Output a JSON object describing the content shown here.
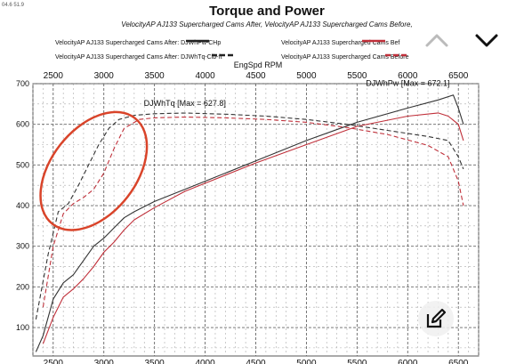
{
  "corner_label": "04.6 51.9",
  "chart_data": {
    "type": "line",
    "title": "Torque and Power",
    "subtitle": "VelocityAP AJ133 Supercharged Cams After, VelocityAP AJ133 Supercharged Cams Before,",
    "xlabel": "EngSpd RPM",
    "ylabel": "",
    "xlim": [
      2300,
      6700
    ],
    "ylim": [
      30,
      700
    ],
    "x_ticks": [
      2500,
      3000,
      3500,
      4000,
      4500,
      5000,
      5500,
      6000,
      6500
    ],
    "x_tick_labels": [
      "2500",
      "3000",
      "3500",
      "4000",
      "4500",
      "5000",
      "5500",
      "6000",
      "6500"
    ],
    "y_ticks": [
      100,
      200,
      300,
      400,
      500,
      600,
      700
    ],
    "y_tick_labels": [
      "100",
      "200",
      "300",
      "400",
      "500",
      "600",
      "700"
    ],
    "grid": true,
    "legend_placement": "top",
    "legend": [
      {
        "label": "VelocityAP AJ133 Supercharged Cams After: DJWhPw-CHp",
        "color": "#222222",
        "dash": "solid"
      },
      {
        "label": "VelocityAP AJ133 Supercharged Cams Bef",
        "color": "#c0303a",
        "dash": "solid"
      },
      {
        "label": "VelocityAP AJ133 Supercharged Cams After: DJWhTq-Clb-ft",
        "color": "#222222",
        "dash": "dashed"
      },
      {
        "label": "VelocityAP AJ133 Supercharged Cams Before",
        "color": "#c0303a",
        "dash": "dashed"
      }
    ],
    "annotations": [
      {
        "text": "DJWhTq [Max = 627.8]",
        "x": 3800,
        "y": 627.8
      },
      {
        "text": "DJWhPw [Max = 672.1]",
        "x": 6450,
        "y": 672.1
      }
    ],
    "highlight_ellipse": {
      "center_x": 2900,
      "center_y": 485,
      "rx_rpm": 420,
      "ry_value": 165,
      "color": "#d9442a"
    },
    "series": [
      {
        "name": "VelocityAP AJ133 Supercharged Cams After: DJWhPw-CHp",
        "color": "#333333",
        "dash": "solid",
        "x": [
          2330,
          2400,
          2500,
          2600,
          2700,
          2800,
          2900,
          3000,
          3100,
          3200,
          3300,
          3500,
          3800,
          4000,
          4500,
          5000,
          5500,
          6000,
          6300,
          6450,
          6500,
          6550
        ],
        "y": [
          40,
          80,
          170,
          210,
          230,
          265,
          300,
          320,
          345,
          370,
          385,
          410,
          440,
          460,
          510,
          560,
          605,
          640,
          660,
          672,
          640,
          600
        ]
      },
      {
        "name": "VelocityAP AJ133 Supercharged Cams Bef",
        "color": "#c0303a",
        "dash": "solid",
        "x": [
          2400,
          2500,
          2600,
          2700,
          2800,
          2900,
          3000,
          3100,
          3200,
          3300,
          3500,
          3800,
          4000,
          4500,
          5000,
          5500,
          6000,
          6300,
          6400,
          6500,
          6550
        ],
        "y": [
          60,
          125,
          175,
          195,
          220,
          250,
          285,
          310,
          340,
          365,
          395,
          435,
          455,
          505,
          550,
          595,
          620,
          628,
          620,
          600,
          560
        ]
      },
      {
        "name": "VelocityAP AJ133 Supercharged Cams After: DJWhTq-Clb-ft",
        "color": "#333333",
        "dash": "dashed",
        "x": [
          2330,
          2450,
          2550,
          2650,
          2750,
          2850,
          2950,
          3050,
          3150,
          3300,
          3500,
          3800,
          4200,
          4600,
          5000,
          5400,
          5800,
          6200,
          6400,
          6500,
          6550
        ],
        "y": [
          120,
          280,
          385,
          405,
          450,
          500,
          550,
          590,
          612,
          622,
          626,
          627.8,
          625,
          620,
          612,
          600,
          585,
          570,
          560,
          520,
          490
        ]
      },
      {
        "name": "VelocityAP AJ133 Supercharged Cams Before",
        "color": "#c0303a",
        "dash": "dashed",
        "x": [
          2400,
          2500,
          2600,
          2700,
          2800,
          2900,
          3000,
          3100,
          3200,
          3350,
          3500,
          3800,
          4200,
          4600,
          5000,
          5400,
          5800,
          6200,
          6400,
          6500,
          6550
        ],
        "y": [
          150,
          300,
          380,
          405,
          420,
          440,
          480,
          540,
          590,
          612,
          616,
          618,
          616,
          612,
          605,
          592,
          575,
          548,
          520,
          460,
          400
        ]
      }
    ]
  },
  "ui": {
    "up_icon": "chevron-up-icon",
    "down_icon": "chevron-down-icon",
    "edit_icon": "edit-icon"
  }
}
